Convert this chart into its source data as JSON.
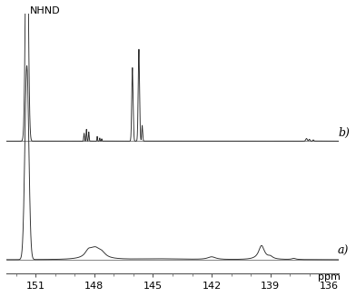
{
  "xlim": [
    135.5,
    152.5
  ],
  "x_ticks": [
    151,
    148,
    145,
    142,
    139,
    136
  ],
  "x_tick_labels": [
    "151",
    "148",
    "145",
    "142",
    "139",
    "136"
  ],
  "xlabel": "ppm",
  "background_color": "#ffffff",
  "line_color": "#2a2a2a",
  "label_b": "b)",
  "label_a": "a)",
  "nhnd_label": "NHND",
  "title_fontsize": 8,
  "tick_fontsize": 8,
  "label_fontsize": 9
}
